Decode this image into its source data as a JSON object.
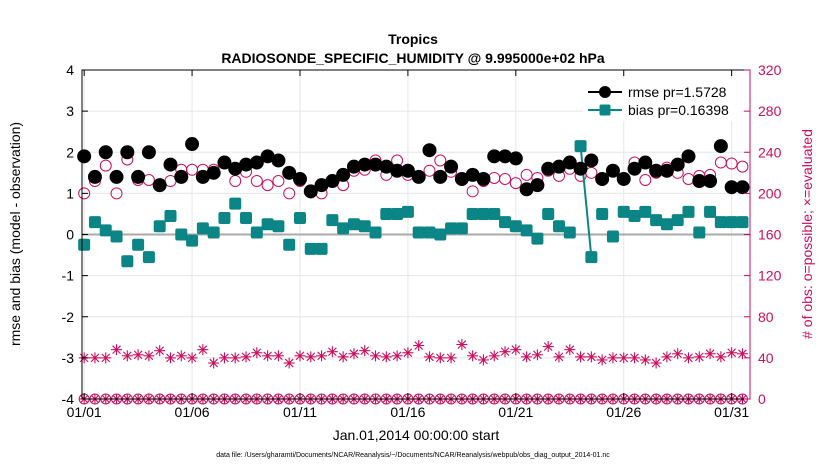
{
  "colors": {
    "rmse": "#000000",
    "bias": "#0b8585",
    "obs": "#cc0d5e",
    "zero_line": "#aaaaaa",
    "grid": "#e6e6e6"
  },
  "chart_data": {
    "type": "scatter",
    "title": "Tropics",
    "subtitle": "RADIOSONDE_SPECIFIC_HUMIDITY @ 9.995000e+02 hPa",
    "xlabel": "Jan.01,2014 00:00:00 start",
    "ylabel": "rmse and bias (model - observation)",
    "y2label": "# of obs: o=possible; ×=evaluated",
    "footnote": "data file: /Users/gharamti/Documents/NCAR/Reanalysis/~/Documents/NCAR/Reanalysis/webpub/obs_diag_output_2014-01.nc",
    "xlim": [
      0.9,
      31.85
    ],
    "ylim": [
      -4,
      4
    ],
    "y2lim": [
      0,
      320
    ],
    "x_ticks": [
      1,
      6,
      11,
      16,
      21,
      26,
      31
    ],
    "x_tick_labels": [
      "01/01",
      "01/06",
      "01/11",
      "01/16",
      "01/21",
      "01/26",
      "01/31"
    ],
    "y_ticks": [
      -4,
      -3,
      -2,
      -1,
      0,
      1,
      2,
      3,
      4
    ],
    "y_tick_labels": [
      "-4",
      "-3",
      "-2",
      "-1",
      "0",
      "1",
      "2",
      "3",
      "4"
    ],
    "y2_ticks": [
      0,
      40,
      80,
      120,
      160,
      200,
      240,
      280,
      320
    ],
    "y2_tick_labels": [
      "0",
      "40",
      "80",
      "120",
      "160",
      "200",
      "240",
      "280",
      "320"
    ],
    "legend": {
      "position": "top-right",
      "entries": [
        {
          "series": "rmse",
          "label": "rmse pr=1.5728"
        },
        {
          "series": "bias",
          "label": "bias pr=0.16398"
        }
      ]
    },
    "x": [
      1,
      1.5,
      2,
      2.5,
      3,
      3.5,
      4,
      4.5,
      5,
      5.5,
      6,
      6.5,
      7,
      7.5,
      8,
      8.5,
      9,
      9.5,
      10,
      10.5,
      11,
      11.5,
      12,
      12.5,
      13,
      13.5,
      14,
      14.5,
      15,
      15.5,
      16,
      16.5,
      17,
      17.5,
      18,
      18.5,
      19,
      19.5,
      20,
      20.5,
      21,
      21.5,
      22,
      22.5,
      23,
      23.5,
      24,
      24.5,
      25,
      25.5,
      26,
      26.5,
      27,
      27.5,
      28,
      28.5,
      29,
      29.5,
      30,
      30.5,
      31,
      31.5
    ],
    "series": [
      {
        "name": "rmse",
        "marker": "filled-circle",
        "values": [
          1.9,
          1.4,
          2.0,
          1.4,
          2.0,
          1.4,
          2.0,
          1.2,
          1.7,
          1.4,
          2.2,
          1.4,
          1.5,
          1.75,
          1.6,
          1.7,
          1.75,
          1.9,
          1.8,
          1.5,
          1.35,
          1.05,
          1.2,
          1.3,
          1.45,
          1.65,
          1.7,
          1.7,
          1.65,
          1.55,
          1.55,
          1.4,
          2.05,
          1.4,
          1.65,
          1.35,
          1.45,
          1.35,
          1.9,
          1.9,
          1.85,
          1.1,
          1.2,
          1.6,
          1.65,
          1.75,
          1.6,
          1.8,
          1.35,
          1.55,
          1.35,
          1.6,
          1.75,
          1.55,
          1.55,
          1.7,
          1.9,
          1.3,
          1.3,
          2.15,
          1.15,
          1.15
        ]
      },
      {
        "name": "bias",
        "marker": "filled-square",
        "line_segment": [
          23.9,
          24.35
        ],
        "values": [
          -0.25,
          0.3,
          0.1,
          -0.05,
          -0.65,
          -0.25,
          -0.55,
          0.2,
          0.45,
          0.0,
          -0.15,
          0.15,
          0.05,
          0.4,
          0.75,
          0.4,
          0.05,
          0.25,
          0.2,
          -0.25,
          0.4,
          -0.35,
          -0.35,
          0.35,
          0.15,
          0.25,
          0.2,
          0.05,
          0.5,
          0.5,
          0.55,
          0.05,
          0.05,
          0.0,
          0.15,
          0.15,
          0.5,
          0.5,
          0.5,
          0.3,
          0.2,
          0.1,
          -0.1,
          0.5,
          0.2,
          0.05,
          2.15,
          -0.55,
          0.5,
          -0.05,
          0.55,
          0.45,
          0.55,
          0.35,
          0.25,
          0.35,
          0.55,
          0.05,
          0.55,
          0.3,
          0.3,
          0.3
        ]
      },
      {
        "name": "obs_possible",
        "marker": "open-circle",
        "axis": "right",
        "values": [
          200,
          212,
          227,
          200,
          233,
          213,
          213,
          207,
          212,
          223,
          223,
          223,
          223,
          230,
          212,
          221,
          212,
          208,
          212,
          200,
          212,
          201,
          200,
          213,
          208,
          222,
          223,
          232,
          218,
          232,
          218,
          216,
          222,
          232,
          221,
          213,
          202,
          212,
          215,
          214,
          210,
          218,
          215,
          222,
          217,
          224,
          217,
          220,
          213,
          222,
          215,
          230,
          213,
          220,
          225,
          220,
          214,
          217,
          218,
          230,
          229,
          226
        ]
      },
      {
        "name": "obs_evaluated",
        "marker": "asterisk",
        "axis": "right",
        "values": [
          40,
          40,
          40,
          48,
          42,
          43,
          42,
          47,
          40,
          42,
          40,
          48,
          35,
          40,
          40,
          41,
          45,
          42,
          42,
          35,
          42,
          41,
          42,
          46,
          41,
          44,
          47,
          42,
          41,
          42,
          45,
          52,
          41,
          40,
          40,
          53,
          42,
          38,
          42,
          46,
          48,
          41,
          43,
          51,
          41,
          48,
          41,
          41,
          38,
          40,
          40,
          40,
          38,
          35,
          41,
          44,
          40,
          41,
          44,
          41,
          45,
          44
        ]
      },
      {
        "name": "obs_possible_zero",
        "marker": "open-circle",
        "axis": "right",
        "values": [
          0,
          0,
          0,
          0,
          0,
          0,
          0,
          0,
          0,
          0,
          0,
          0,
          0,
          0,
          0,
          0,
          0,
          0,
          0,
          0,
          0,
          0,
          0,
          0,
          0,
          0,
          0,
          0,
          0,
          0,
          0,
          0,
          0,
          0,
          0,
          0,
          0,
          0,
          0,
          0,
          0,
          0,
          0,
          0,
          0,
          0,
          0,
          0,
          0,
          0,
          0,
          0,
          0,
          0,
          0,
          0,
          0,
          0,
          0,
          0,
          0,
          0
        ]
      },
      {
        "name": "obs_evaluated_zero",
        "marker": "asterisk",
        "axis": "right",
        "values": [
          0,
          0,
          0,
          0,
          0,
          0,
          0,
          0,
          0,
          0,
          0,
          0,
          0,
          0,
          0,
          0,
          0,
          0,
          0,
          0,
          0,
          0,
          0,
          0,
          0,
          0,
          0,
          0,
          0,
          0,
          0,
          0,
          0,
          0,
          0,
          0,
          0,
          0,
          0,
          0,
          0,
          0,
          0,
          0,
          0,
          0,
          0,
          0,
          0,
          0,
          0,
          0,
          0,
          0,
          0,
          0,
          0,
          0,
          0,
          0,
          0,
          0
        ]
      }
    ]
  }
}
